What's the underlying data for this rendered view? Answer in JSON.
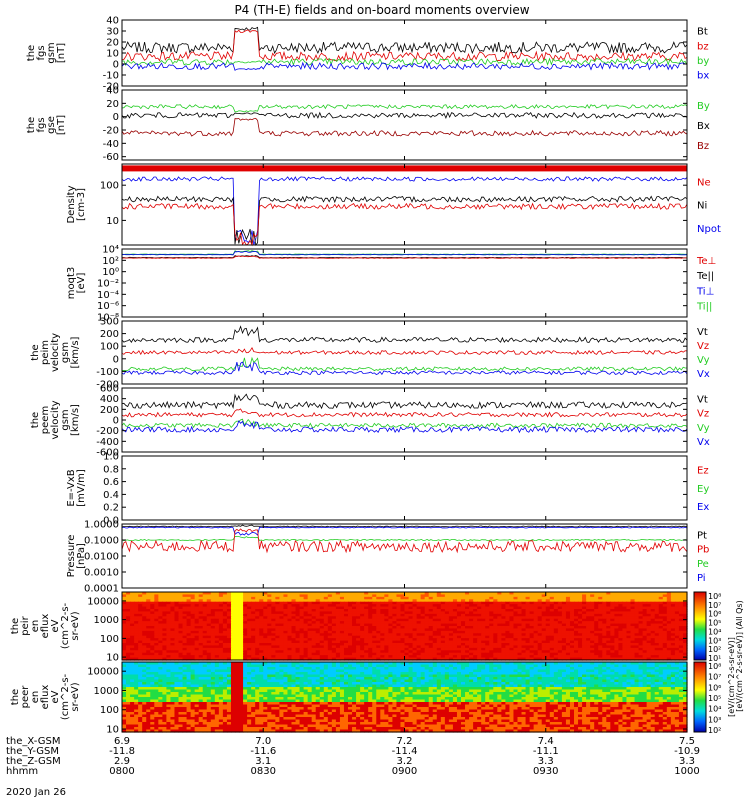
{
  "chart_data": {
    "type": "line",
    "title": "P4 (TH-E) fields and on-board moments overview",
    "date_label": "2020 Jan 26",
    "colors": {
      "black": "#000000",
      "red": "#e00000",
      "green": "#22cc22",
      "blue": "#0000ee",
      "darkred": "#990000"
    },
    "xrange": [
      0,
      120
    ],
    "panels": [
      {
        "id": "fgs-gsm",
        "scale": "linear",
        "yrange": [
          -20,
          40
        ],
        "ylabel": [
          "the",
          "fgs",
          "gsm",
          "[nT]"
        ],
        "ticks": [
          {
            "v": 40,
            "l": "40"
          },
          {
            "v": 30,
            "l": "30"
          },
          {
            "v": 20,
            "l": "20"
          },
          {
            "v": 10,
            "l": "10"
          },
          {
            "v": 0,
            "l": "0"
          },
          {
            "v": -10,
            "l": "-10"
          },
          {
            "v": -20,
            "l": "-20"
          }
        ],
        "legend": [
          {
            "t": "Bt",
            "c": "#000000"
          },
          {
            "t": "bz",
            "c": "#e00000"
          },
          {
            "t": "by",
            "c": "#22cc22"
          },
          {
            "t": "bx",
            "c": "#0000ee"
          }
        ],
        "series": [
          {
            "name": "Bt",
            "color": "#000000",
            "base": 15,
            "amp": 5,
            "ev": 32,
            "evr": 1.5
          },
          {
            "name": "bz",
            "color": "#e00000",
            "base": 7,
            "amp": 4,
            "ev": 30,
            "evr": 1.5
          },
          {
            "name": "by",
            "color": "#22cc22",
            "base": 2,
            "amp": 3,
            "ev": 2,
            "evr": 1
          },
          {
            "name": "bx",
            "color": "#0000ee",
            "base": -2,
            "amp": 3,
            "ev": -5,
            "evr": 1
          }
        ]
      },
      {
        "id": "fgs-gse",
        "scale": "linear",
        "yrange": [
          -65,
          40
        ],
        "ylabel": [
          "the",
          "fgs",
          "gse",
          "[nT]"
        ],
        "ticks": [
          {
            "v": 40,
            "l": "40"
          },
          {
            "v": 20,
            "l": "20"
          },
          {
            "v": 0,
            "l": "0"
          },
          {
            "v": -20,
            "l": "-20"
          },
          {
            "v": -40,
            "l": "-40"
          },
          {
            "v": -60,
            "l": "-60"
          }
        ],
        "legend": [
          {
            "t": "By",
            "c": "#22cc22"
          },
          {
            "t": "Bx",
            "c": "#000000"
          },
          {
            "t": "Bz",
            "c": "#990000"
          }
        ],
        "series": [
          {
            "name": "By",
            "color": "#22cc22",
            "base": 15,
            "amp": 3,
            "ev": 8,
            "evr": 1
          },
          {
            "name": "Bx",
            "color": "#000000",
            "base": 2,
            "amp": 4,
            "ev": 5,
            "evr": 1
          },
          {
            "name": "Bz",
            "color": "#990000",
            "base": -25,
            "amp": 4,
            "ev": -4,
            "evr": 2
          }
        ]
      },
      {
        "id": "density",
        "scale": "log",
        "yrange": [
          2,
          400
        ],
        "ylabel": [
          "Density",
          "[cm-3]"
        ],
        "ticks": [
          {
            "v": 100,
            "l": "100"
          },
          {
            "v": 10,
            "l": "10"
          }
        ],
        "band": {
          "color": "#e00000",
          "value": 300
        },
        "legend": [
          {
            "t": "Ne",
            "c": "#e00000"
          },
          {
            "t": "Ni",
            "c": "#000000"
          },
          {
            "t": "Npot",
            "c": "#0000ee"
          }
        ],
        "series": [
          {
            "name": "Npot",
            "color": "#0000ee",
            "base": 150,
            "amp": 0.06,
            "ev": 3,
            "evr": 0.3
          },
          {
            "name": "Ni",
            "color": "#000000",
            "base": 40,
            "amp": 0.08,
            "ev": 3,
            "evr": 0.3
          },
          {
            "name": "Ne",
            "color": "#e00000",
            "base": 25,
            "amp": 0.08,
            "ev": 2.5,
            "evr": 0.3
          }
        ]
      },
      {
        "id": "moqt3",
        "scale": "log",
        "yrange": [
          1e-08,
          10000
        ],
        "ylabel": [
          "moqt3",
          "[eV]"
        ],
        "ticks": [
          {
            "v": 10000,
            "l": "10⁴"
          },
          {
            "v": 100,
            "l": "10²"
          },
          {
            "v": 1,
            "l": "10⁰"
          },
          {
            "v": 0.01,
            "l": "10⁻²"
          },
          {
            "v": 0.0001,
            "l": "10⁻⁴"
          },
          {
            "v": 1e-06,
            "l": "10⁻⁶"
          },
          {
            "v": 1e-08,
            "l": "10⁻⁸"
          }
        ],
        "legend": [
          {
            "t": "Te⊥",
            "c": "#e00000"
          },
          {
            "t": "Te||",
            "c": "#000000"
          },
          {
            "t": "Ti⊥",
            "c": "#0000ee"
          },
          {
            "t": "Ti||",
            "c": "#22cc22"
          }
        ],
        "series": [
          {
            "name": "Ti||",
            "color": "#22cc22",
            "base": 1200,
            "amp": 0.04,
            "ev": 4000,
            "evr": 0.1
          },
          {
            "name": "Ti⊥",
            "color": "#0000ee",
            "base": 1000,
            "amp": 0.04,
            "ev": 3000,
            "evr": 0.1
          },
          {
            "name": "Te||",
            "color": "#000000",
            "base": 300,
            "amp": 0.05,
            "ev": 600,
            "evr": 0.1
          },
          {
            "name": "Te⊥",
            "color": "#e00000",
            "base": 250,
            "amp": 0.05,
            "ev": 500,
            "evr": 0.1
          }
        ]
      },
      {
        "id": "peim-velocity",
        "scale": "linear",
        "yrange": [
          -200,
          300
        ],
        "ylabel": [
          "the",
          "peim",
          "velocity",
          "gsm",
          "[km/s]"
        ],
        "ticks": [
          {
            "v": 300,
            "l": "300"
          },
          {
            "v": 200,
            "l": "200"
          },
          {
            "v": 100,
            "l": "100"
          },
          {
            "v": 0,
            "l": "0"
          },
          {
            "v": -100,
            "l": "-100"
          },
          {
            "v": -200,
            "l": "-200"
          }
        ],
        "legend": [
          {
            "t": "Vt",
            "c": "#000000"
          },
          {
            "t": "Vz",
            "c": "#e00000"
          },
          {
            "t": "Vy",
            "c": "#22cc22"
          },
          {
            "t": "Vx",
            "c": "#0000ee"
          }
        ],
        "series": [
          {
            "name": "Vt",
            "color": "#000000",
            "base": 150,
            "amp": 20,
            "ev": 220,
            "evr": 40
          },
          {
            "name": "Vz",
            "color": "#e00000",
            "base": 50,
            "amp": 15,
            "ev": 60,
            "evr": 30
          },
          {
            "name": "Vy",
            "color": "#22cc22",
            "base": -80,
            "amp": 15,
            "ev": -30,
            "evr": 40
          },
          {
            "name": "Vx",
            "color": "#0000ee",
            "base": -110,
            "amp": 15,
            "ev": -60,
            "evr": 40
          }
        ]
      },
      {
        "id": "peem-velocity",
        "scale": "linear",
        "yrange": [
          -600,
          600
        ],
        "ylabel": [
          "the",
          "peem",
          "velocity",
          "gsm",
          "[km/s]"
        ],
        "ticks": [
          {
            "v": 600,
            "l": "600"
          },
          {
            "v": 400,
            "l": "400"
          },
          {
            "v": 200,
            "l": "200"
          },
          {
            "v": 0,
            "l": "0"
          },
          {
            "v": -200,
            "l": "-200"
          },
          {
            "v": -400,
            "l": "-400"
          },
          {
            "v": -600,
            "l": "-600"
          }
        ],
        "legend": [
          {
            "t": "Vt",
            "c": "#000000"
          },
          {
            "t": "Vz",
            "c": "#e00000"
          },
          {
            "t": "Vy",
            "c": "#22cc22"
          },
          {
            "t": "Vx",
            "c": "#0000ee"
          }
        ],
        "series": [
          {
            "name": "Vt",
            "color": "#000000",
            "base": 280,
            "amp": 60,
            "ev": 420,
            "evr": 90
          },
          {
            "name": "Vz",
            "color": "#e00000",
            "base": 100,
            "amp": 40,
            "ev": 150,
            "evr": 60
          },
          {
            "name": "Vy",
            "color": "#22cc22",
            "base": -100,
            "amp": 40,
            "ev": -50,
            "evr": 80
          },
          {
            "name": "Vx",
            "color": "#0000ee",
            "base": -180,
            "amp": 50,
            "ev": -100,
            "evr": 90
          }
        ]
      },
      {
        "id": "efield",
        "scale": "linear",
        "yrange": [
          0,
          1
        ],
        "ylabel": [
          "E=-VxB",
          "[mV/m]"
        ],
        "ticks": [
          {
            "v": 1.0,
            "l": "1.0"
          },
          {
            "v": 0.8,
            "l": "0.8"
          },
          {
            "v": 0.6,
            "l": "0.6"
          },
          {
            "v": 0.4,
            "l": "0.4"
          },
          {
            "v": 0.2,
            "l": "0.2"
          },
          {
            "v": 0.0,
            "l": "0.0"
          }
        ],
        "legend": [
          {
            "t": "Ez",
            "c": "#e00000"
          },
          {
            "t": "Ey",
            "c": "#22cc22"
          },
          {
            "t": "Ex",
            "c": "#0000ee"
          }
        ],
        "series": []
      },
      {
        "id": "pressure",
        "scale": "log",
        "yrange": [
          0.0001,
          1
        ],
        "ylabel": [
          "Pressure",
          "[nPa]"
        ],
        "ticks": [
          {
            "v": 1,
            "l": "1.0000"
          },
          {
            "v": 0.1,
            "l": "0.1000"
          },
          {
            "v": 0.01,
            "l": "0.0100"
          },
          {
            "v": 0.001,
            "l": "0.0010"
          },
          {
            "v": 0.0001,
            "l": "0.0001"
          }
        ],
        "legend": [
          {
            "t": "Pt",
            "c": "#000000"
          },
          {
            "t": "Pb",
            "c": "#e00000"
          },
          {
            "t": "Pe",
            "c": "#22cc22"
          },
          {
            "t": "Pi",
            "c": "#0000ee"
          }
        ],
        "series": [
          {
            "name": "Pt",
            "color": "#000000",
            "base": 0.7,
            "amp": 0.03,
            "ev": 0.8,
            "evr": 0.05
          },
          {
            "name": "Pi",
            "color": "#0000ee",
            "base": 0.6,
            "amp": 0.03,
            "ev": 0.25,
            "evr": 0.1
          },
          {
            "name": "Pe",
            "color": "#22cc22",
            "base": 0.1,
            "amp": 0.04,
            "ev": 0.15,
            "evr": 0.05
          },
          {
            "name": "Pb",
            "color": "#e00000",
            "base": 0.04,
            "amp": 0.35,
            "ev": 0.4,
            "evr": 0.1
          }
        ]
      },
      {
        "id": "peir-eflux",
        "scale": "log",
        "yrange": [
          7,
          30000
        ],
        "type": "spectrogram",
        "kind": "ion",
        "ylabel": [
          "the",
          "peir",
          "en",
          "eflux",
          "eV",
          "(cm^2-s-",
          "sr-eV)"
        ],
        "ticks": [
          {
            "v": 10000,
            "l": "10000"
          },
          {
            "v": 1000,
            "l": "1000"
          },
          {
            "v": 100,
            "l": "100"
          },
          {
            "v": 10,
            "l": "10"
          }
        ]
      },
      {
        "id": "peer-eflux",
        "scale": "log",
        "yrange": [
          7,
          30000
        ],
        "type": "spectrogram",
        "kind": "electron",
        "ylabel": [
          "the",
          "peer",
          "en",
          "eflux",
          "eV",
          "(cm^2-s-",
          "sr-eV)"
        ],
        "ticks": [
          {
            "v": 10000,
            "l": "10000"
          },
          {
            "v": 1000,
            "l": "1000"
          },
          {
            "v": 100,
            "l": "100"
          },
          {
            "v": 10,
            "l": "10"
          }
        ]
      }
    ],
    "colorbars": [
      {
        "label": "[eV/(cm^2-s-sr-eV)] (All Qs)",
        "ticks": [
          "10⁸",
          "10⁷",
          "10⁶",
          "10⁵",
          "10⁴",
          "10³",
          "10²",
          "10¹"
        ]
      },
      {
        "label": "[eV/(cm^2-s-sr-eV)]",
        "ticks": [
          "10⁸",
          "10⁷",
          "10⁶",
          "10⁵",
          "10⁴",
          "10³",
          "10²"
        ]
      }
    ],
    "xaxis": {
      "tick_positions": [
        0,
        30,
        60,
        90,
        120
      ],
      "rows": [
        {
          "label": "the_X-GSM",
          "values": [
            "6.9",
            "7.0",
            "7.2",
            "7.4",
            "7.5"
          ]
        },
        {
          "label": "the_Y-GSM",
          "values": [
            "-11.8",
            "-11.6",
            "-11.4",
            "-11.1",
            "-10.9"
          ]
        },
        {
          "label": "the_Z-GSM",
          "values": [
            "2.9",
            "3.1",
            "3.2",
            "3.3",
            "3.3"
          ]
        },
        {
          "label": "hhmm",
          "values": [
            "0800",
            "0830",
            "0900",
            "0930",
            "1000"
          ]
        }
      ]
    },
    "event_window": [
      24,
      29
    ]
  }
}
